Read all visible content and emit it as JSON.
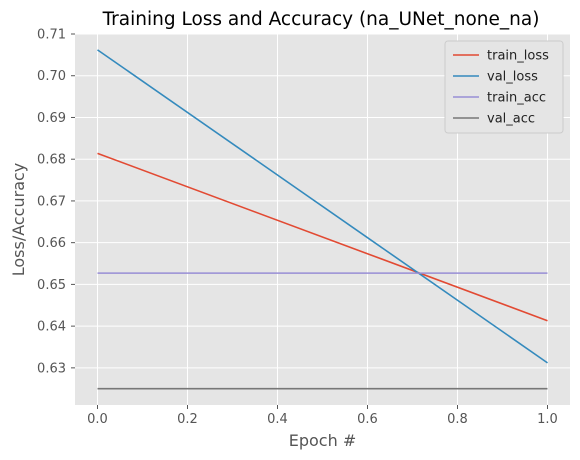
{
  "chart_data": {
    "type": "line",
    "title": "Training Loss and Accuracy (na_UNet_none_na)",
    "xlabel": "Epoch #",
    "ylabel": "Loss/Accuracy",
    "x": [
      0,
      1
    ],
    "xlim": [
      -0.05,
      1.05
    ],
    "ylim": [
      0.6211,
      0.71
    ],
    "xticks": [
      0.0,
      0.2,
      0.4,
      0.6,
      0.8,
      1.0
    ],
    "xtick_labels": [
      "0.0",
      "0.2",
      "0.4",
      "0.6",
      "0.8",
      "1.0"
    ],
    "yticks": [
      0.63,
      0.64,
      0.65,
      0.66,
      0.67,
      0.68,
      0.69,
      0.7,
      0.71
    ],
    "ytick_labels": [
      "0.63",
      "0.64",
      "0.65",
      "0.66",
      "0.67",
      "0.68",
      "0.69",
      "0.70",
      "0.71"
    ],
    "grid": true,
    "legend_position": "top-right",
    "style": {
      "plot_background": "#e5e5e5",
      "grid_color": "#ffffff"
    },
    "series": [
      {
        "name": "train_loss",
        "values": [
          0.6814,
          0.6413
        ],
        "color": "#e24a33"
      },
      {
        "name": "val_loss",
        "values": [
          0.7062,
          0.6312
        ],
        "color": "#348abd"
      },
      {
        "name": "train_acc",
        "values": [
          0.6527,
          0.6527
        ],
        "color": "#988ed5"
      },
      {
        "name": "val_acc",
        "values": [
          0.625,
          0.625
        ],
        "color": "#777777"
      }
    ]
  }
}
